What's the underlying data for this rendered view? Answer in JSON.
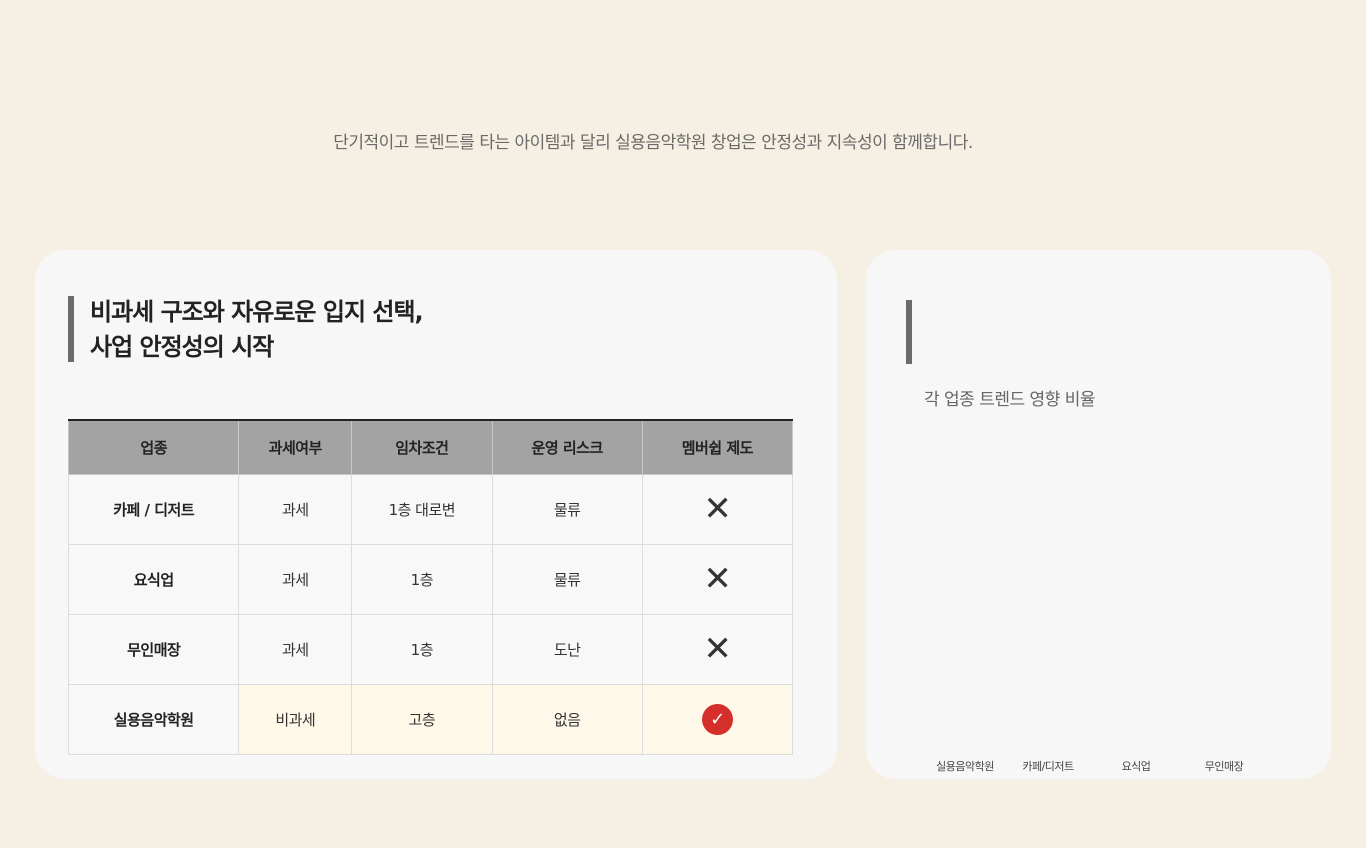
{
  "subtitle": "단기적이고 트렌드를 타는 아이템과 달리 실용음악학원 창업은 안정성과 지속성이 함께합니다.",
  "left_card": {
    "heading_line1": "비과세 구조와 자유로운 입지 선택,",
    "heading_line2": "사업 안정성의 시작",
    "table": {
      "headers": [
        "업종",
        "과세여부",
        "임차조건",
        "운영 리스크",
        "멤버쉽 제도"
      ],
      "rows": [
        {
          "name": "카페 / 디저트",
          "tax": "과세",
          "lease": "1층 대로변",
          "risk": "물류",
          "membership": "x-icon"
        },
        {
          "name": "요식업",
          "tax": "과세",
          "lease": "1층",
          "risk": "물류",
          "membership": "x-icon"
        },
        {
          "name": "무인매장",
          "tax": "과세",
          "lease": "1층",
          "risk": "도난",
          "membership": "x-icon"
        },
        {
          "name": "실용음악학원",
          "tax": "비과세",
          "lease": "고층",
          "risk": "없음",
          "membership": "check-icon"
        }
      ],
      "highlight_color": "#fdf8e8",
      "check_color": "#d42f2a"
    }
  },
  "right_card": {
    "title": "각 업종 트렌드 영향 비율",
    "labels": [
      "실용음악학원",
      "카페/디저트",
      "요식업",
      "무인매장"
    ]
  }
}
